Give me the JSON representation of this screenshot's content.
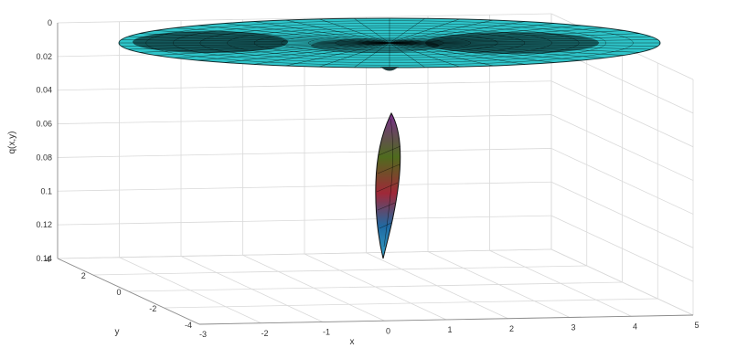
{
  "chart_data": {
    "type": "surface",
    "title": "",
    "xlabel": "x",
    "ylabel": "y",
    "zlabel": "q(x,y)",
    "z_axis_reversed": true,
    "grid": true,
    "xlim": [
      -3,
      5
    ],
    "ylim": [
      -4,
      4
    ],
    "zlim": [
      0,
      0.14
    ],
    "xticks": [
      "-3",
      "-2",
      "-1",
      "0",
      "1",
      "2",
      "3",
      "4",
      "5"
    ],
    "yticks": [
      "4",
      "2",
      "0",
      "-2",
      "-4"
    ],
    "zticks": [
      "0",
      "0.02",
      "0.04",
      "0.06",
      "0.08",
      "0.1",
      "0.12",
      "0.14"
    ],
    "series": [
      {
        "description_role": "flat disc surface",
        "color": "#2ec4c9",
        "edge_color": "#000000",
        "x_range": [
          -3.4,
          5.4
        ],
        "y_range": [
          -1,
          1
        ],
        "z_value": 0.018
      },
      {
        "description_role": "narrow spike surface",
        "colormap": [
          "#7a2e8c",
          "#4f6b1e",
          "#a02838",
          "#1f6aa3",
          "#35a0c4"
        ],
        "x_center": 0.0,
        "y_center": 0.0,
        "z_range": [
          0.06,
          0.14
        ]
      }
    ],
    "colors": {
      "disc": "#2ec4c9",
      "mesh": "#000000",
      "grid": "#d9d9d9",
      "frame": "#8c8c8c",
      "text": "#333333"
    }
  }
}
